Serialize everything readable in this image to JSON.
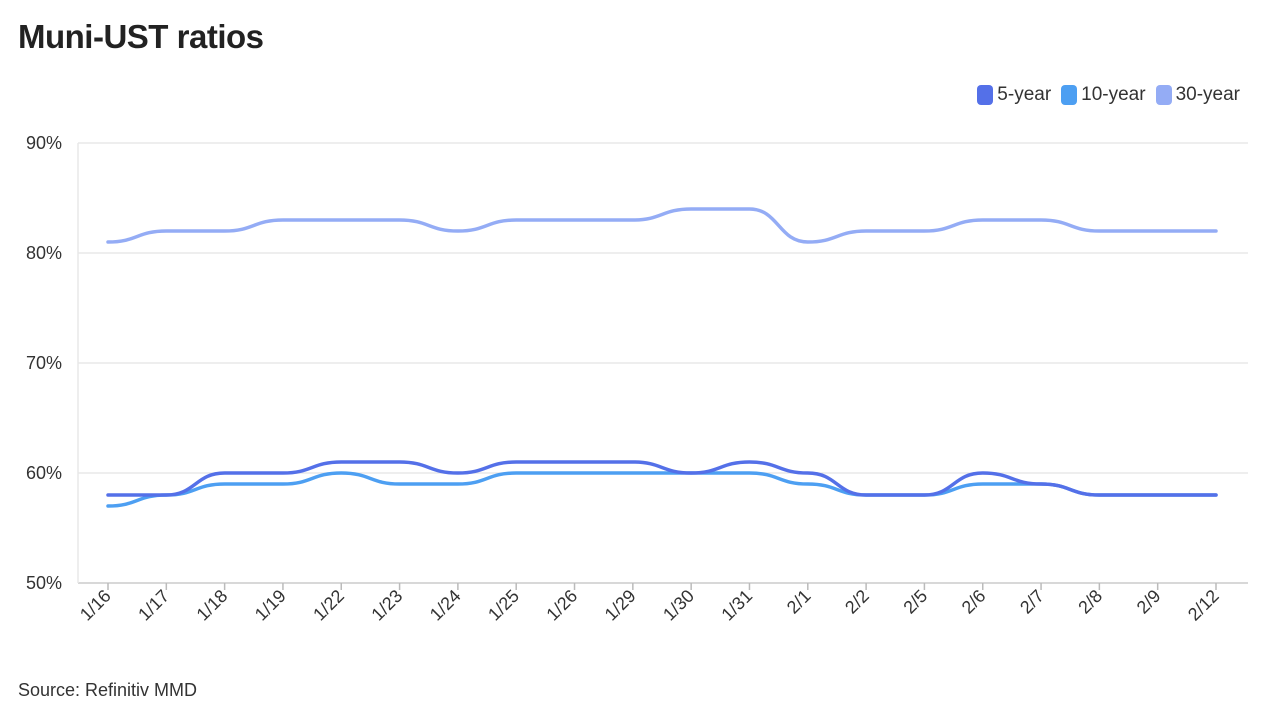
{
  "title": "Muni-UST ratios",
  "source": "Source: Refinitiv MMD",
  "chart_data": {
    "type": "line",
    "title": "Muni-UST ratios",
    "xlabel": "",
    "ylabel": "",
    "ylim": [
      50,
      90
    ],
    "y_ticks": [
      50,
      60,
      70,
      80,
      90
    ],
    "y_tick_suffix": "%",
    "grid": true,
    "legend_position": "top-right",
    "categories": [
      "1/16",
      "1/17",
      "1/18",
      "1/19",
      "1/22",
      "1/23",
      "1/24",
      "1/25",
      "1/26",
      "1/29",
      "1/30",
      "1/31",
      "2/1",
      "2/2",
      "2/5",
      "2/6",
      "2/7",
      "2/8",
      "2/9",
      "2/12"
    ],
    "series": [
      {
        "name": "5-year",
        "color": "#5470e8",
        "values": [
          58,
          58,
          60,
          60,
          61,
          61,
          60,
          61,
          61,
          61,
          60,
          61,
          60,
          58,
          58,
          60,
          59,
          58,
          58,
          58
        ]
      },
      {
        "name": "10-year",
        "color": "#4d9ff2",
        "values": [
          57,
          58,
          59,
          59,
          60,
          59,
          59,
          60,
          60,
          60,
          60,
          60,
          59,
          58,
          58,
          59,
          59,
          58,
          58,
          58
        ]
      },
      {
        "name": "30-year",
        "color": "#94acf5",
        "values": [
          81,
          82,
          82,
          83,
          83,
          83,
          82,
          83,
          83,
          83,
          84,
          84,
          81,
          82,
          82,
          83,
          83,
          82,
          82,
          82
        ]
      }
    ]
  }
}
